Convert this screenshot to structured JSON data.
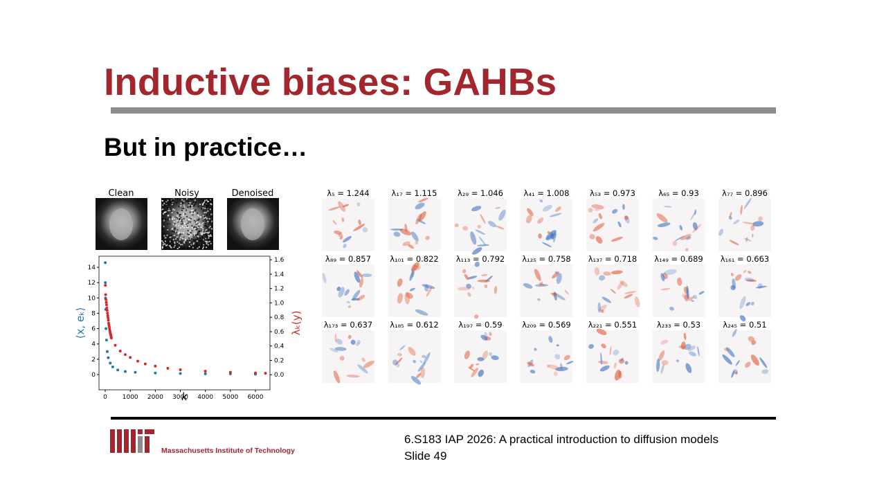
{
  "header": {
    "title": "Inductive biases: GAHBs",
    "subtitle": "But in practice…"
  },
  "figure": {
    "images": [
      "Clean",
      "Noisy",
      "Denoised"
    ],
    "plot": {
      "x_label": "k",
      "y_label": "⟨x, eₖ⟩",
      "y2_label": "λₖ(y)",
      "xlim": [
        -250,
        6580
      ],
      "ylim": [
        -1.99,
        15.45
      ],
      "y2lim": [
        -0.21,
        1.65
      ],
      "xticks": [
        0,
        1000,
        2000,
        3000,
        4000,
        5000,
        6000
      ],
      "yticks": [
        0,
        2,
        4,
        6,
        8,
        10,
        12,
        14
      ],
      "y2ticks": [
        {
          "value": 0,
          "label": "0.0"
        },
        {
          "value": 0.2,
          "label": "0.2"
        },
        {
          "value": 0.4,
          "label": "0.4"
        },
        {
          "value": 0.6,
          "label": "0.6"
        },
        {
          "value": 0.8,
          "label": "0.8"
        },
        {
          "value": 1.0,
          "label": "1.0"
        },
        {
          "value": 1.2,
          "label": "1.2"
        },
        {
          "value": 1.4,
          "label": "1.4"
        },
        {
          "value": 1.6,
          "label": "1.6"
        }
      ],
      "series": [
        {
          "color": "#1f77b4",
          "axis": "y",
          "x": [
            2,
            5,
            10,
            20,
            30,
            50,
            80,
            120,
            200,
            300,
            500,
            800,
            1200,
            2000,
            3000,
            4000,
            5000,
            6000
          ],
          "values": [
            14.6,
            12,
            10,
            8.5,
            6,
            4.5,
            3,
            2.2,
            1.5,
            1,
            0.6,
            0.4,
            0.3,
            0.2,
            0.15,
            0.1,
            0.1,
            0.05
          ]
        },
        {
          "color": "#d62728",
          "axis": "y2",
          "x": [
            5,
            17,
            29,
            41,
            53,
            65,
            77,
            89,
            101,
            113,
            125,
            137,
            149,
            161,
            173,
            185,
            197,
            209,
            221,
            233,
            245,
            400,
            600,
            800,
            1000,
            1300,
            1600,
            2000,
            2500,
            3000,
            4000,
            5000,
            6000,
            6400
          ],
          "values": [
            1.244,
            1.115,
            1.046,
            1.008,
            0.973,
            0.93,
            0.896,
            0.857,
            0.822,
            0.792,
            0.758,
            0.718,
            0.689,
            0.663,
            0.637,
            0.612,
            0.59,
            0.569,
            0.551,
            0.53,
            0.51,
            0.41,
            0.33,
            0.28,
            0.24,
            0.19,
            0.15,
            0.12,
            0.09,
            0.07,
            0.05,
            0.035,
            0.025,
            0.02
          ]
        }
      ]
    },
    "eigen_labels": [
      "λ₅ = 1.244",
      "λ₁₇ = 1.115",
      "λ₂₉ = 1.046",
      "λ₄₁ = 1.008",
      "λ₅₃ = 0.973",
      "λ₆₅ = 0.93",
      "λ₇₇ = 0.896",
      "λ₈₉ = 0.857",
      "λ₁₀₁ = 0.822",
      "λ₁₁₃ = 0.792",
      "λ₁₂₅ = 0.758",
      "λ₁₃₇ = 0.718",
      "λ₁₄₉ = 0.689",
      "λ₁₆₁ = 0.663",
      "λ₁₇₃ = 0.637",
      "λ₁₈₅ = 0.612",
      "λ₁₉₇ = 0.59",
      "λ₂₀₉ = 0.569",
      "λ₂₂₁ = 0.551",
      "λ₂₃₃ = 0.53",
      "λ₂₄₅ = 0.51"
    ]
  },
  "footer": {
    "institution": "Massachusetts Institute of Technology",
    "course": "6.S183 IAP 2026: A practical introduction to diffusion models",
    "slide": "Slide 49"
  }
}
